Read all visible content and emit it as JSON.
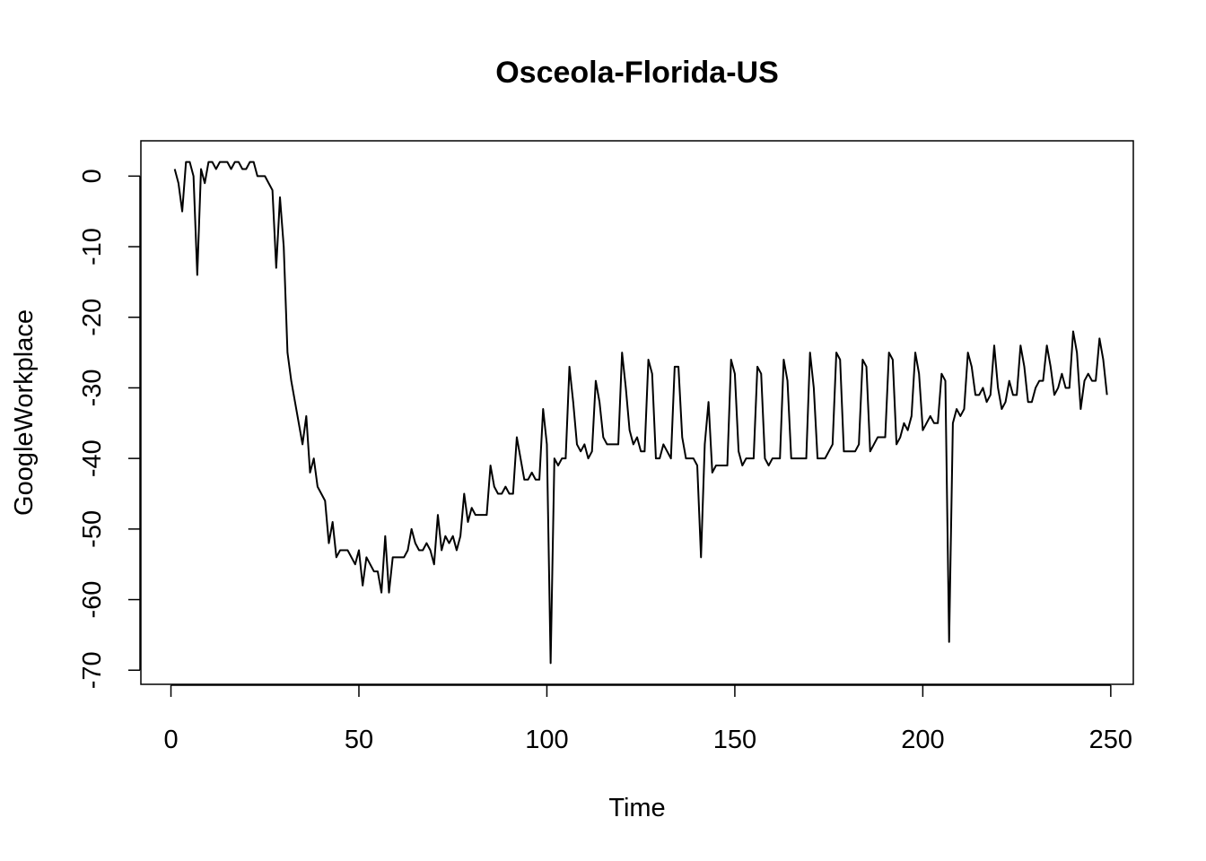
{
  "chart_data": {
    "type": "line",
    "title": "Osceola-Florida-US",
    "xlabel": "Time",
    "ylabel": "GoogleWorkplace",
    "xlim": [
      -8,
      256
    ],
    "ylim": [
      -72,
      5
    ],
    "x_ticks": [
      0,
      50,
      100,
      150,
      200,
      250
    ],
    "y_ticks": [
      0,
      -10,
      -20,
      -30,
      -40,
      -50,
      -60,
      -70
    ],
    "line_color": "#000000",
    "series": [
      {
        "x_start": 1,
        "values": [
          1,
          -1,
          -5,
          2,
          2,
          0,
          -14,
          1,
          -1,
          2,
          2,
          1,
          2,
          2,
          2,
          1,
          2,
          2,
          1,
          1,
          2,
          2,
          0,
          0,
          0,
          -1,
          -2,
          -13,
          -3,
          -10,
          -25,
          -29,
          -32,
          -35,
          -38,
          -34,
          -42,
          -40,
          -44,
          -45,
          -46,
          -52,
          -49,
          -54,
          -53,
          -53,
          -53,
          -54,
          -55,
          -53,
          -58,
          -54,
          -55,
          -56,
          -56,
          -59,
          -51,
          -59,
          -54,
          -54,
          -54,
          -54,
          -53,
          -50,
          -52,
          -53,
          -53,
          -52,
          -53,
          -55,
          -48,
          -53,
          -51,
          -52,
          -51,
          -53,
          -51,
          -45,
          -49,
          -47,
          -48,
          -48,
          -48,
          -48,
          -41,
          -44,
          -45,
          -45,
          -44,
          -45,
          -45,
          -37,
          -40,
          -43,
          -43,
          -42,
          -43,
          -43,
          -33,
          -38,
          -69,
          -40,
          -41,
          -40,
          -40,
          -27,
          -32,
          -38,
          -39,
          -38,
          -40,
          -39,
          -29,
          -32,
          -37,
          -38,
          -38,
          -38,
          -38,
          -25,
          -30,
          -36,
          -38,
          -37,
          -39,
          -39,
          -26,
          -28,
          -40,
          -40,
          -38,
          -39,
          -40,
          -27,
          -27,
          -37,
          -40,
          -40,
          -40,
          -41,
          -54,
          -38,
          -32,
          -42,
          -41,
          -41,
          -41,
          -41,
          -26,
          -28,
          -39,
          -41,
          -40,
          -40,
          -40,
          -27,
          -28,
          -40,
          -41,
          -40,
          -40,
          -40,
          -26,
          -29,
          -40,
          -40,
          -40,
          -40,
          -40,
          -25,
          -30,
          -40,
          -40,
          -40,
          -39,
          -38,
          -25,
          -26,
          -39,
          -39,
          -39,
          -39,
          -38,
          -26,
          -27,
          -39,
          -38,
          -37,
          -37,
          -37,
          -25,
          -26,
          -38,
          -37,
          -35,
          -36,
          -34,
          -25,
          -28,
          -36,
          -35,
          -34,
          -35,
          -35,
          -28,
          -29,
          -66,
          -35,
          -33,
          -34,
          -33,
          -25,
          -27,
          -31,
          -31,
          -30,
          -32,
          -31,
          -24,
          -30,
          -33,
          -32,
          -29,
          -31,
          -31,
          -24,
          -27,
          -32,
          -32,
          -30,
          -29,
          -29,
          -24,
          -27,
          -31,
          -30,
          -28,
          -30,
          -30,
          -22,
          -25,
          -33,
          -29,
          -28,
          -29,
          -29,
          -23,
          -26,
          -31
        ]
      }
    ]
  }
}
